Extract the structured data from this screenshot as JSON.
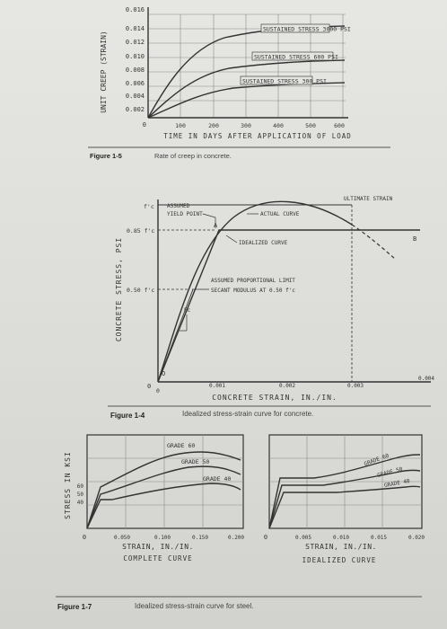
{
  "fig15": {
    "yticks": [
      "0.016",
      "0.014",
      "0.012",
      "0.010",
      "0.008",
      "0.006",
      "0.004",
      "0.002",
      "0"
    ],
    "xticks": [
      "100",
      "200",
      "300",
      "400",
      "500",
      "600"
    ],
    "ylabel": "UNIT CREEP (STRAIN)",
    "xlabel": "TIME IN DAYS AFTER APPLICATION OF LOAD",
    "curves": [
      "SUSTAINED STRESS 3000 PSI",
      "SUSTAINED STRESS 600 PSI",
      "SUSTAINED STRESS 300 PSI"
    ],
    "caption_label": "Figure 1-5",
    "caption_text": "Rate of creep in concrete."
  },
  "fig14": {
    "yticks": [
      "f'c",
      "0.85 f'c",
      "0.50 f'c",
      "0"
    ],
    "xticks": [
      "0",
      "0.001",
      "0.002",
      "0.003",
      "0.004"
    ],
    "ylabel": "CONCRETE STRESS, PSI",
    "xlabel": "CONCRETE STRAIN, IN./IN.",
    "annot_assumed": "ASSUMED",
    "annot_yield": "YIELD POINT",
    "annot_actual": "ACTUAL CURVE",
    "annot_ultimate": "ULTIMATE STRAIN",
    "annot_idealized": "IDEALIZED CURVE",
    "annot_prop": "ASSUMED PROPORTIONAL LIMIT",
    "annot_secant": "SECANT MODULUS AT 0.50 f'c",
    "pt_a": "A",
    "pt_b": "B",
    "pt_o": "O",
    "pt_ec": "Ec",
    "caption_label": "Figure 1-4",
    "caption_text": "Idealized stress-strain curve for concrete."
  },
  "fig17": {
    "ylabel": "STRESS IN KSI",
    "yticks": [
      "60",
      "50",
      "40"
    ],
    "left": {
      "xticks": [
        "0",
        "0.050",
        "0.100",
        "0.150",
        "0.200"
      ],
      "grades": [
        "GRADE 60",
        "GRADE 50",
        "GRADE 40"
      ],
      "xlabel": "STRAIN, IN./IN.",
      "sublabel": "COMPLETE CURVE"
    },
    "right": {
      "xticks": [
        "0",
        "0.005",
        "0.010",
        "0.015",
        "0.020"
      ],
      "grades": [
        "GRADE 60",
        "GRADE 50",
        "GRADE 40"
      ],
      "xlabel": "STRAIN, IN./IN.",
      "sublabel": "IDEALIZED CURVE"
    },
    "caption_label": "Figure 1-7",
    "caption_text": "Idealized stress-strain curve for steel."
  }
}
